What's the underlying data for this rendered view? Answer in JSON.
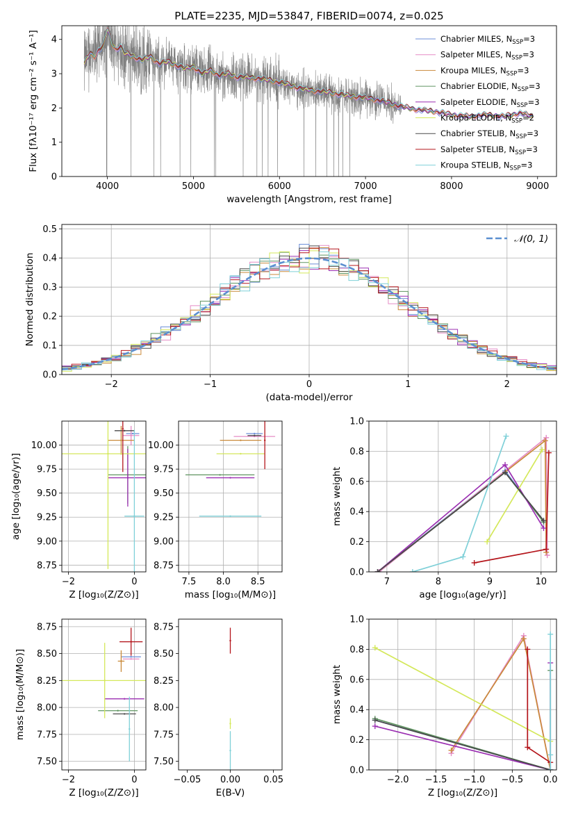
{
  "title": "PLATE=2235, MJD=53847, FIBERID=0074, z=0.025",
  "models": [
    {
      "name": "Chabrier MILES",
      "nssp": 3,
      "color": "#6c8ed8"
    },
    {
      "name": "Salpeter MILES",
      "nssp": 3,
      "color": "#e58cc6"
    },
    {
      "name": "Kroupa MILES",
      "nssp": 3,
      "color": "#c98a3a"
    },
    {
      "name": "Chabrier ELODIE",
      "nssp": 3,
      "color": "#5f9460"
    },
    {
      "name": "Salpeter ELODIE",
      "nssp": 3,
      "color": "#9b2fb2"
    },
    {
      "name": "Kroupa ELODIE",
      "nssp": 2,
      "color": "#d4e85a"
    },
    {
      "name": "Chabrier STELIB",
      "nssp": 3,
      "color": "#4a4a4a"
    },
    {
      "name": "Salpeter STELIB",
      "nssp": 3,
      "color": "#b4151b"
    },
    {
      "name": "Kroupa STELIB",
      "nssp": 3,
      "color": "#7fd0d8"
    }
  ],
  "chart_data": [
    {
      "id": "spectrum",
      "type": "line",
      "xlabel": "wavelength [Angstrom, rest frame]",
      "ylabel": "Flux [fλ10⁻¹⁷ erg cm⁻² s⁻¹ A⁻¹]",
      "xlim": [
        3470,
        9220
      ],
      "ylim": [
        0,
        4.4
      ],
      "xticks": [
        4000,
        5000,
        6000,
        7000,
        8000,
        9000
      ],
      "yticks": [
        0,
        1,
        2,
        3,
        4
      ],
      "data_series": {
        "name": "data",
        "color": "#808080",
        "x_range": [
          3730,
          7420
        ]
      },
      "model_continuum": {
        "x": [
          3730,
          3800,
          3850,
          3900,
          3950,
          4000,
          4050,
          4100,
          4150,
          4200,
          4300,
          4400,
          4500,
          4600,
          4700,
          4800,
          4900,
          5000,
          5100,
          5200,
          5300,
          5400,
          5500,
          5600,
          5800,
          6000,
          6200,
          6400,
          6600,
          6800,
          7000,
          7200,
          7400,
          7600,
          7800,
          8000,
          8200,
          8400,
          8600,
          8800,
          8950
        ],
        "y": [
          3.3,
          3.6,
          3.5,
          3.7,
          3.8,
          4.3,
          3.9,
          3.7,
          3.8,
          3.6,
          3.5,
          3.4,
          3.5,
          3.3,
          3.35,
          3.25,
          3.15,
          3.2,
          3.0,
          3.1,
          2.95,
          3.0,
          2.9,
          2.9,
          2.85,
          2.75,
          2.6,
          2.5,
          2.45,
          2.35,
          2.3,
          2.2,
          2.05,
          1.95,
          1.9,
          1.8,
          1.75,
          1.8,
          1.75,
          1.85,
          1.75
        ]
      }
    },
    {
      "id": "residuals",
      "type": "line",
      "xlabel": "(data-model)/error",
      "ylabel": "Normed distribution",
      "xlim": [
        -2.5,
        2.5
      ],
      "ylim": [
        0,
        0.515
      ],
      "xticks": [
        -2,
        -1,
        0,
        1,
        2
      ],
      "yticks": [
        0.0,
        0.1,
        0.2,
        0.3,
        0.4,
        0.5
      ],
      "legend": "𝒩(0, 1)",
      "reference_curve": {
        "name": "N(0,1)",
        "mean": 0,
        "sigma": 1,
        "color": "#5b8fd0"
      },
      "bin_edges_step": 0.1,
      "grid": true
    },
    {
      "id": "age-vs-Z",
      "type": "scatter",
      "xlabel": "Z [log₁₀(Z/Z⊙)]",
      "ylabel": "age  [log₁₀(age/yr)]",
      "xlim": [
        -2.2,
        0.35
      ],
      "ylim": [
        8.68,
        10.25
      ],
      "xticks": [
        -2,
        0
      ],
      "yticks": [
        8.75,
        9.0,
        9.25,
        9.5,
        9.75,
        10.0
      ],
      "points": [
        {
          "model": 0,
          "x": -0.05,
          "y": 10.12,
          "xe": 0.2,
          "ye": 0.0
        },
        {
          "model": 1,
          "x": -0.1,
          "y": 10.1,
          "xe": 0.25,
          "ye": 0.1
        },
        {
          "model": 2,
          "x": -0.4,
          "y": 10.05,
          "xe": 0.4,
          "ye": 0.15
        },
        {
          "model": 3,
          "x": -0.2,
          "y": 9.69,
          "xe": 0.6,
          "ye": 0.3
        },
        {
          "model": 4,
          "x": -0.2,
          "y": 9.66,
          "xe": 0.6,
          "ye": 0.3
        },
        {
          "model": 5,
          "x": -0.8,
          "y": 9.91,
          "xe": 1.9,
          "ye": 1.2
        },
        {
          "model": 6,
          "x": -0.3,
          "y": 10.15,
          "xe": 0.3,
          "ye": 0.0
        },
        {
          "model": 7,
          "x": -0.35,
          "y": 10.17,
          "xe": 0.0,
          "ye": 0.45
        },
        {
          "model": 8,
          "x": 0.0,
          "y": 9.26,
          "xe": 0.3,
          "ye": 0.9
        }
      ],
      "grid": true
    },
    {
      "id": "age-vs-mass",
      "type": "scatter",
      "xlabel": "mass [log₁₀(M/M⊙)]",
      "ylabel": "",
      "xlim": [
        7.35,
        8.85
      ],
      "ylim": [
        8.68,
        10.25
      ],
      "xticks": [
        7.5,
        8.0,
        8.5
      ],
      "yticks": [
        8.75,
        9.0,
        9.25,
        9.5,
        9.75,
        10.0
      ],
      "points": [
        {
          "model": 0,
          "x": 8.45,
          "y": 10.12,
          "xe": 0.12,
          "ye": 0.0
        },
        {
          "model": 1,
          "x": 8.45,
          "y": 10.09,
          "xe": 0.3,
          "ye": 0.0
        },
        {
          "model": 2,
          "x": 8.25,
          "y": 10.05,
          "xe": 0.3,
          "ye": 0.0
        },
        {
          "model": 3,
          "x": 7.95,
          "y": 9.69,
          "xe": 0.5,
          "ye": 0.0
        },
        {
          "model": 4,
          "x": 8.1,
          "y": 9.66,
          "xe": 0.35,
          "ye": 0.0
        },
        {
          "model": 5,
          "x": 8.25,
          "y": 9.91,
          "xe": 0.35,
          "ye": 0.0
        },
        {
          "model": 6,
          "x": 8.45,
          "y": 10.1,
          "xe": 0.1,
          "ye": 0.0
        },
        {
          "model": 7,
          "x": 8.6,
          "y": 10.05,
          "xe": 0.0,
          "ye": 0.3
        },
        {
          "model": 8,
          "x": 8.1,
          "y": 9.26,
          "xe": 0.45,
          "ye": 0.0
        }
      ],
      "grid": true
    },
    {
      "id": "weight-vs-age",
      "type": "line",
      "xlabel": "age  [log₁₀(age/yr)]",
      "ylabel": "mass weight",
      "xlim": [
        6.65,
        10.3
      ],
      "ylim": [
        0,
        1.0
      ],
      "xticks": [
        7,
        8,
        9,
        10
      ],
      "yticks": [
        0.0,
        0.2,
        0.4,
        0.6,
        0.8,
        1.0
      ],
      "series": [
        {
          "model": 0,
          "x": [
            6.82,
            9.3,
            10.05
          ],
          "y": [
            0.0,
            0.67,
            0.33
          ]
        },
        {
          "model": 1,
          "x": [
            6.85,
            10.1,
            10.12
          ],
          "y": [
            0.0,
            0.89,
            0.11
          ]
        },
        {
          "model": 2,
          "x": [
            6.82,
            10.08,
            10.1
          ],
          "y": [
            0.0,
            0.87,
            0.13
          ]
        },
        {
          "model": 3,
          "x": [
            6.82,
            9.3,
            10.05
          ],
          "y": [
            0.0,
            0.66,
            0.33
          ]
        },
        {
          "model": 4,
          "x": [
            6.82,
            9.3,
            10.05
          ],
          "y": [
            0.0,
            0.71,
            0.29
          ]
        },
        {
          "model": 5,
          "x": [
            8.95,
            10.02
          ],
          "y": [
            0.2,
            0.81
          ]
        },
        {
          "model": 6,
          "x": [
            6.82,
            9.3,
            10.05
          ],
          "y": [
            0.0,
            0.66,
            0.34
          ]
        },
        {
          "model": 7,
          "x": [
            8.7,
            10.1,
            10.15
          ],
          "y": [
            0.06,
            0.15,
            0.79
          ]
        },
        {
          "model": 8,
          "x": [
            7.5,
            8.48,
            9.32
          ],
          "y": [
            0.0,
            0.1,
            0.9
          ]
        }
      ],
      "grid": true
    },
    {
      "id": "mass-vs-Z",
      "type": "scatter",
      "xlabel": "Z [log₁₀(Z/Z⊙)]",
      "ylabel": "mass [log₁₀(M/M⊙)]",
      "xlim": [
        -2.2,
        0.35
      ],
      "ylim": [
        7.42,
        8.82
      ],
      "xticks": [
        -2,
        0
      ],
      "yticks": [
        7.5,
        7.75,
        8.0,
        8.25,
        8.5,
        8.75
      ],
      "points": [
        {
          "model": 0,
          "x": -0.1,
          "y": 8.47,
          "xe": 0.3,
          "ye": 0.0
        },
        {
          "model": 1,
          "x": -0.1,
          "y": 8.45,
          "xe": 0.25,
          "ye": 0.0
        },
        {
          "model": 2,
          "x": -0.4,
          "y": 8.43,
          "xe": 0.1,
          "ye": 0.1
        },
        {
          "model": 3,
          "x": -0.5,
          "y": 7.97,
          "xe": 0.6,
          "ye": 0.0
        },
        {
          "model": 4,
          "x": -0.3,
          "y": 8.08,
          "xe": 0.6,
          "ye": 0.0
        },
        {
          "model": 5,
          "x": -0.9,
          "y": 8.25,
          "xe": 1.3,
          "ye": 0.35
        },
        {
          "model": 6,
          "x": -0.3,
          "y": 7.94,
          "xe": 0.35,
          "ye": 0.0
        },
        {
          "model": 7,
          "x": -0.1,
          "y": 8.61,
          "xe": 0.35,
          "ye": 0.13
        },
        {
          "model": 8,
          "x": -0.15,
          "y": 7.8,
          "xe": 0.0,
          "ye": 0.3
        }
      ],
      "grid": true
    },
    {
      "id": "mass-vs-ebv",
      "type": "scatter",
      "xlabel": "E(B-V)",
      "ylabel": "",
      "xlim": [
        -0.06,
        0.06
      ],
      "ylim": [
        7.42,
        8.82
      ],
      "xticks": [
        -0.05,
        0.0,
        0.05
      ],
      "xticklabels": [
        "−0.05",
        "0.00",
        "0.05"
      ],
      "yticks": [
        7.5,
        7.75,
        8.0,
        8.25,
        8.5,
        8.75
      ],
      "points": [
        {
          "model": 7,
          "x": 0.0,
          "y": 8.62,
          "xe": 0.0,
          "ye": 0.12
        },
        {
          "model": 5,
          "x": 0.0,
          "y": 7.85,
          "xe": 0.0,
          "ye": 0.05
        },
        {
          "model": 8,
          "x": 0.0,
          "y": 7.6,
          "xe": 0.0,
          "ye": 0.18
        }
      ],
      "grid": false
    },
    {
      "id": "weight-vs-Z",
      "type": "line",
      "xlabel": "Z [log₁₀(Z/Z⊙)]",
      "ylabel": "mass weight",
      "xlim": [
        -2.38,
        0.08
      ],
      "ylim": [
        0,
        1.0
      ],
      "xticks": [
        -2.0,
        -1.5,
        -1.0,
        -0.5,
        0.0
      ],
      "xticklabels": [
        "−2.0",
        "−1.5",
        "−1.0",
        "−0.5",
        "0.0"
      ],
      "yticks": [
        0.0,
        0.2,
        0.4,
        0.6,
        0.8,
        1.0
      ],
      "series": [
        {
          "model": 0,
          "x": [
            -2.3,
            0.0
          ],
          "y": [
            0.33,
            0.0
          ]
        },
        {
          "model": 1,
          "x": [
            -1.3,
            -0.35,
            0.0
          ],
          "y": [
            0.11,
            0.89,
            0.0
          ]
        },
        {
          "model": 2,
          "x": [
            -1.3,
            -0.35,
            0.0
          ],
          "y": [
            0.13,
            0.87,
            0.0
          ]
        },
        {
          "model": 3,
          "x": [
            -2.3,
            0.0,
            0.0
          ],
          "y": [
            0.34,
            0.0,
            0.66
          ]
        },
        {
          "model": 4,
          "x": [
            -2.3,
            0.0,
            0.0
          ],
          "y": [
            0.29,
            0.0,
            0.71
          ]
        },
        {
          "model": 5,
          "x": [
            -2.3,
            0.0
          ],
          "y": [
            0.81,
            0.19
          ]
        },
        {
          "model": 6,
          "x": [
            -2.3,
            0.0
          ],
          "y": [
            0.33,
            0.0
          ]
        },
        {
          "model": 7,
          "x": [
            -0.3,
            -0.3,
            0.0
          ],
          "y": [
            0.8,
            0.15,
            0.05
          ]
        },
        {
          "model": 8,
          "x": [
            0.0,
            0.0,
            0.0
          ],
          "y": [
            0.9,
            0.1,
            0.0
          ]
        }
      ],
      "grid": true
    }
  ]
}
